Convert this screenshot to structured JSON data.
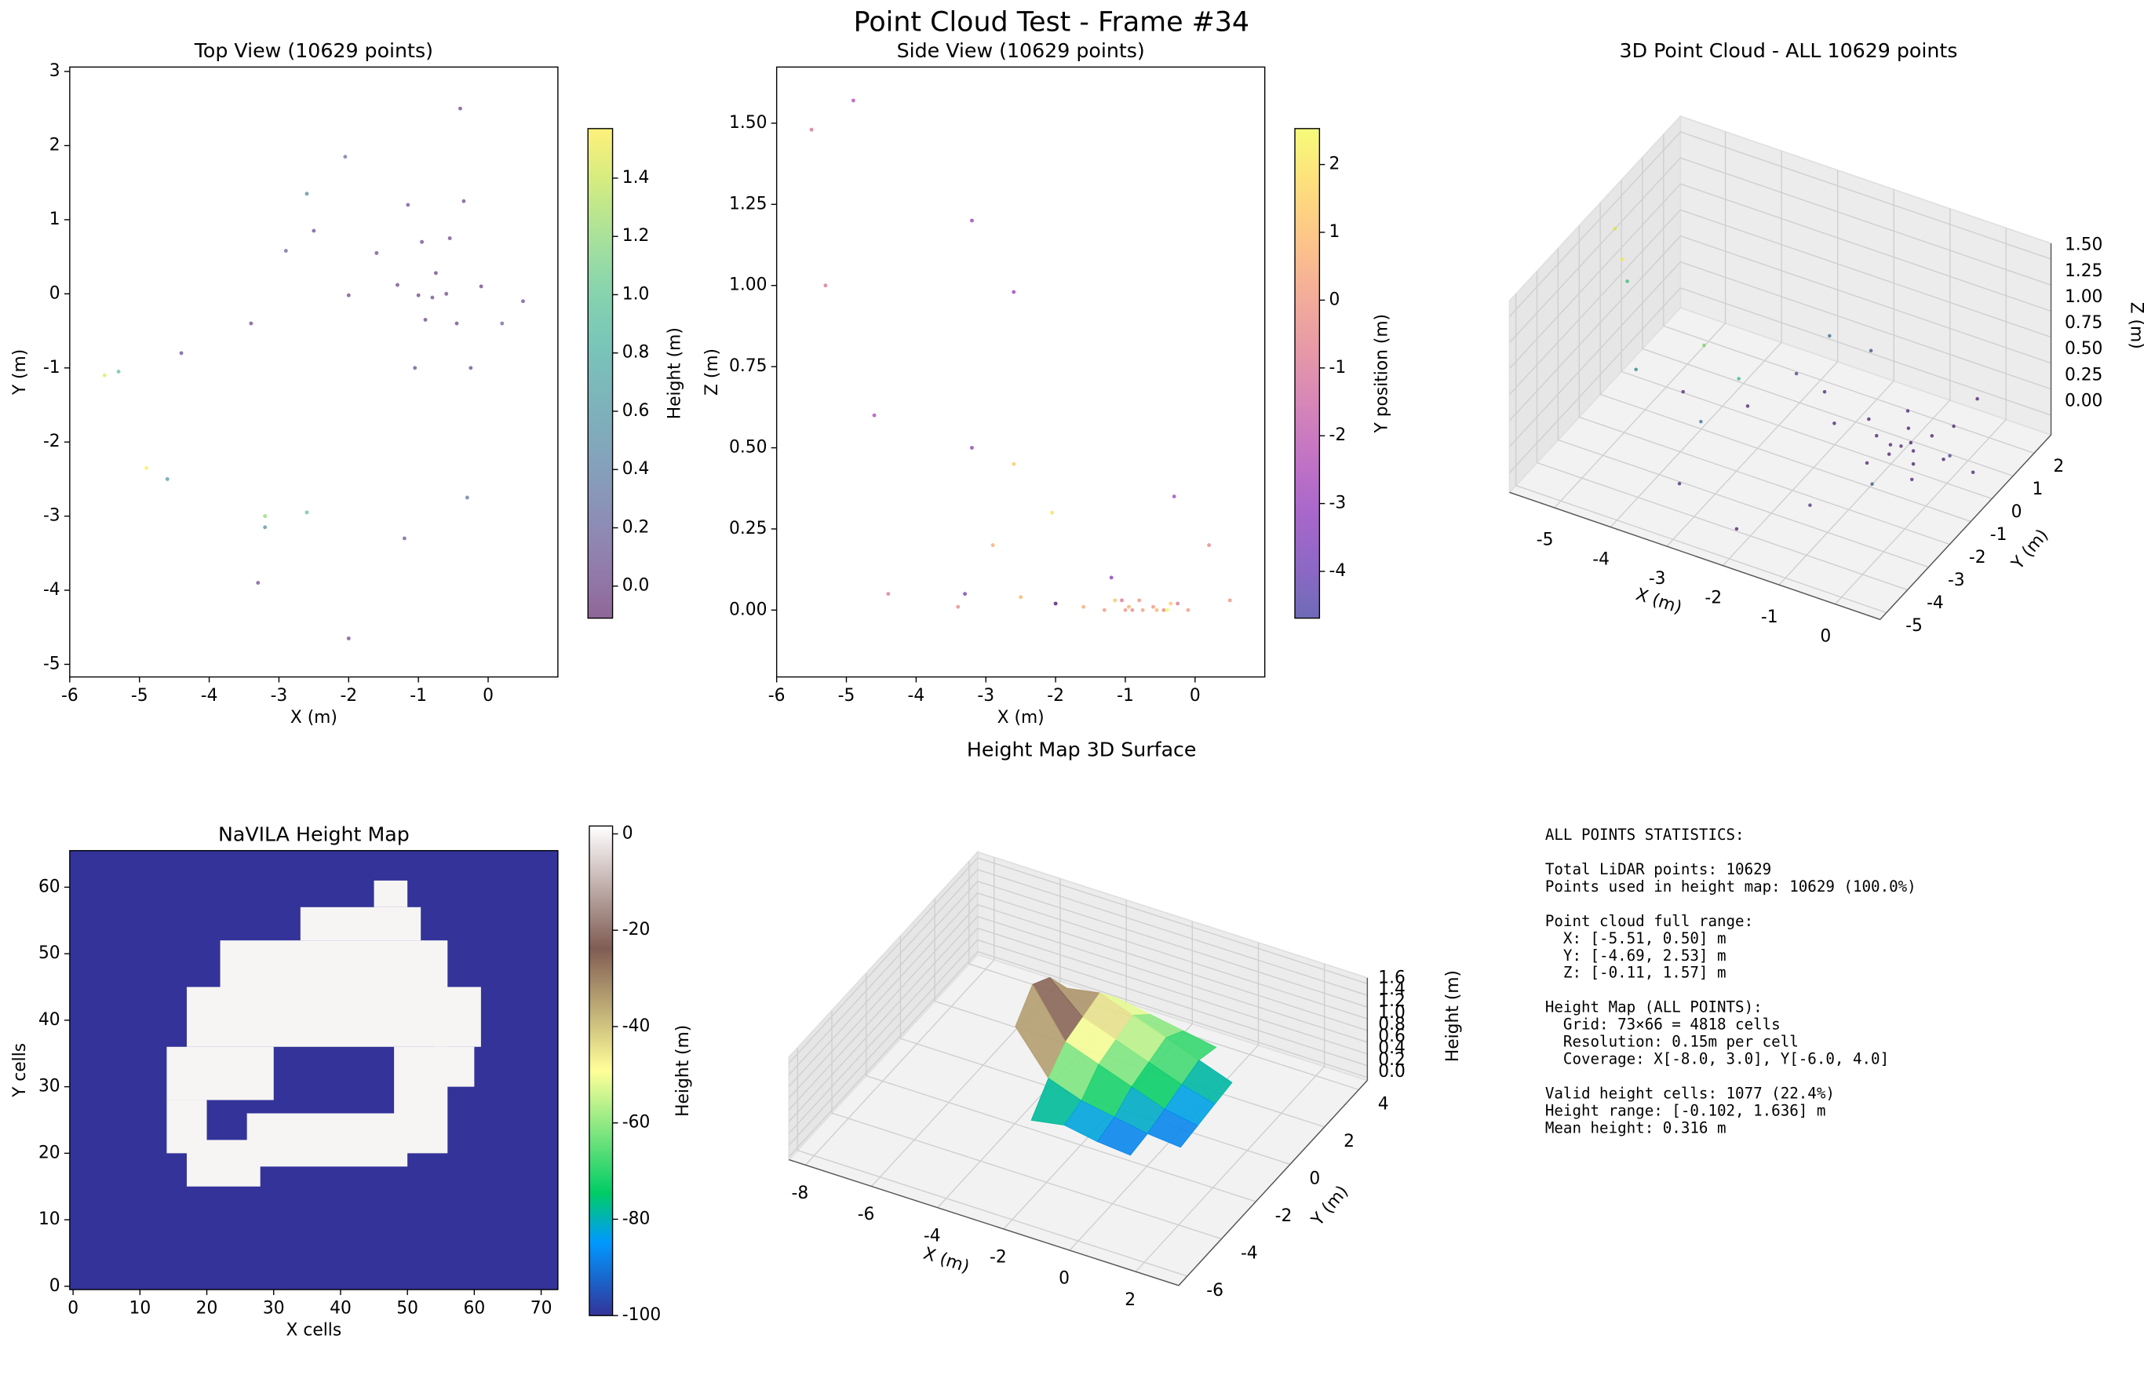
{
  "title": "Point Cloud Test - Frame #34",
  "chart_data": [
    {
      "type": "scatter",
      "title": "Top View (10629 points)",
      "xlabel": "X (m)",
      "ylabel": "Y (m)",
      "x": [
        -0.75,
        -0.95,
        -1.15,
        -0.55,
        -0.35,
        -1.3,
        -2.0,
        -0.9,
        -1.05,
        -0.45,
        -0.25,
        -0.1,
        0.5,
        -1.6,
        -2.5,
        -2.9,
        -2.05,
        -2.6,
        -5.3,
        -5.5,
        -4.6,
        -4.9,
        -3.2,
        -3.2,
        -2.6,
        -2.0,
        -3.3,
        -1.2,
        -0.3,
        -4.4,
        -3.4,
        0.2,
        -0.4,
        -1.0,
        -0.6,
        -0.8
      ],
      "y": [
        0.28,
        0.7,
        1.2,
        0.75,
        1.25,
        0.12,
        -0.02,
        -0.35,
        -1.0,
        -0.4,
        -1.0,
        0.1,
        -0.1,
        0.55,
        0.85,
        0.58,
        1.85,
        1.35,
        -1.05,
        -1.1,
        -2.5,
        -2.35,
        -3.15,
        -3.0,
        -2.95,
        -4.65,
        -3.9,
        -3.3,
        -2.75,
        -0.8,
        -0.4,
        -0.4,
        2.5,
        -0.02,
        0.0,
        -0.05
      ],
      "c": [
        0.0,
        0.01,
        0.03,
        0.0,
        0.02,
        0.0,
        0.02,
        0.0,
        0.03,
        0.0,
        0.02,
        0.0,
        0.03,
        0.01,
        0.04,
        0.2,
        0.3,
        0.45,
        1.0,
        1.48,
        0.6,
        1.57,
        0.5,
        1.2,
        0.98,
        0.02,
        0.05,
        0.1,
        0.35,
        0.05,
        0.01,
        0.2,
        0.0,
        0.0,
        0.01,
        0.03
      ],
      "cmap": "viridis",
      "alpha": 0.6,
      "clim": [
        -0.11,
        1.57
      ],
      "colorbar_label": "Height (m)",
      "colorbar_ticks": [
        {
          "value": 0,
          "label": "0.0"
        },
        0.2,
        0.4,
        0.6,
        0.8,
        {
          "value": 1,
          "label": "1.0"
        },
        1.2,
        1.4
      ],
      "xlim": [
        -6.0,
        1.0
      ],
      "xticks": [
        -6,
        -5,
        -4,
        -3,
        -2,
        -1,
        0
      ],
      "ylim": [
        -5.17,
        3.06
      ],
      "yticks": [
        -5,
        -4,
        -3,
        -2,
        -1,
        0,
        1,
        2,
        3
      ]
    },
    {
      "type": "scatter",
      "title": "Side View (10629 points)",
      "xlabel": "X (m)",
      "ylabel": "Z (m)",
      "x": [
        -0.75,
        -0.95,
        -1.15,
        -0.55,
        -0.35,
        -1.3,
        -2.0,
        -0.9,
        -1.05,
        -0.45,
        -0.25,
        -0.1,
        0.5,
        -1.6,
        -2.5,
        -2.9,
        -2.05,
        -2.6,
        -5.3,
        -5.5,
        -4.6,
        -4.9,
        -3.2,
        -3.2,
        -2.6,
        -2.0,
        -3.3,
        -1.2,
        -0.3,
        -4.4,
        -3.4,
        0.2,
        -0.4,
        -1.0,
        -0.6,
        -0.8
      ],
      "y": [
        0.0,
        0.01,
        0.03,
        0.0,
        0.02,
        0.0,
        0.02,
        0.0,
        0.03,
        0.0,
        0.02,
        0.0,
        0.03,
        0.01,
        0.04,
        0.2,
        0.3,
        0.45,
        1.0,
        1.48,
        0.6,
        1.57,
        0.5,
        1.2,
        0.98,
        0.02,
        0.05,
        0.1,
        0.35,
        0.05,
        0.01,
        0.2,
        0.0,
        0.0,
        0.01,
        0.03
      ],
      "c": [
        0.28,
        0.7,
        1.2,
        0.75,
        1.25,
        0.12,
        -0.02,
        -0.35,
        -1.0,
        -0.4,
        -1.0,
        0.1,
        -0.1,
        0.55,
        0.85,
        0.58,
        1.85,
        1.35,
        -1.05,
        -1.1,
        -2.5,
        -2.35,
        -3.15,
        -3.0,
        -2.95,
        -4.65,
        -3.9,
        -3.3,
        -2.75,
        -0.8,
        -0.4,
        -0.4,
        2.5,
        -0.02,
        0.0,
        -0.05
      ],
      "cmap": "plasma",
      "alpha": 0.6,
      "clim": [
        -4.69,
        2.53
      ],
      "colorbar_label": "Y position (m)",
      "colorbar_ticks": [
        -4,
        -3,
        -2,
        -1,
        0,
        1,
        2
      ],
      "xlim": [
        -6.0,
        1.0
      ],
      "xticks": [
        -6,
        -5,
        -4,
        -3,
        -2,
        -1,
        0
      ],
      "ylim": [
        -0.206,
        1.673
      ],
      "yticks": [
        {
          "value": 0,
          "label": "0.00"
        },
        0.25,
        {
          "value": 0.5,
          "label": "0.50"
        },
        0.75,
        {
          "value": 1,
          "label": "1.00"
        },
        1.25,
        {
          "value": 1.5,
          "label": "1.50"
        }
      ]
    },
    {
      "type": "scatter3d",
      "title": "3D Point Cloud - ALL 10629 points",
      "xlabel": "X (m)",
      "ylabel": "Y (m)",
      "zlabel": "Z (m)",
      "x": [
        -0.75,
        -0.95,
        -1.15,
        -0.55,
        -0.35,
        -1.3,
        -2.0,
        -0.9,
        -1.05,
        -0.45,
        -0.25,
        -0.1,
        0.5,
        -1.6,
        -2.5,
        -2.9,
        -2.05,
        -2.6,
        -5.3,
        -5.5,
        -4.6,
        -4.9,
        -3.2,
        -3.2,
        -2.6,
        -2.0,
        -3.3,
        -1.2,
        -0.3,
        -4.4,
        -3.4,
        0.2,
        -0.4,
        -1.0,
        -0.6,
        -0.8
      ],
      "y": [
        0.28,
        0.7,
        1.2,
        0.75,
        1.25,
        0.12,
        -0.02,
        -0.35,
        -1.0,
        -0.4,
        -1.0,
        0.1,
        -0.1,
        0.55,
        0.85,
        0.58,
        1.85,
        1.35,
        -1.05,
        -1.1,
        -2.5,
        -2.35,
        -3.15,
        -3.0,
        -2.95,
        -4.65,
        -3.9,
        -3.3,
        -2.75,
        -0.8,
        -0.4,
        -0.4,
        2.5,
        -0.02,
        0.0,
        -0.05
      ],
      "z": [
        0.0,
        0.01,
        0.03,
        0.0,
        0.02,
        0.0,
        0.02,
        0.0,
        0.03,
        0.0,
        0.02,
        0.0,
        0.03,
        0.01,
        0.04,
        0.2,
        0.3,
        0.45,
        1.0,
        1.48,
        0.6,
        1.57,
        0.5,
        1.2,
        0.98,
        0.02,
        0.05,
        0.1,
        0.35,
        0.05,
        0.01,
        0.2,
        0.0,
        0.0,
        0.01,
        0.03
      ],
      "cmap": "viridis",
      "clim": [
        -0.11,
        1.57
      ],
      "xlim": [
        -5.8,
        0.8
      ],
      "xticks": [
        -5,
        -4,
        -3,
        -2,
        -1,
        0
      ],
      "ylim": [
        -5.3,
        2.8
      ],
      "yticks": [
        -5,
        -4,
        -3,
        -2,
        -1,
        0,
        1,
        2
      ],
      "zlim": [
        -0.19,
        1.65
      ],
      "zticks": [
        {
          "value": 0,
          "label": "0.00"
        },
        0.25,
        {
          "value": 0.5,
          "label": "0.50"
        },
        0.75,
        {
          "value": 1,
          "label": "1.00"
        },
        1.25,
        {
          "value": 1.5,
          "label": "1.50"
        }
      ]
    },
    {
      "type": "heatmap",
      "title": "NaVILA Height Map",
      "xlabel": "X cells",
      "ylabel": "Y cells",
      "background_value": -100,
      "region_value": 0,
      "regions": [
        [
          45,
          50,
          57,
          61
        ],
        [
          34,
          52,
          52,
          57
        ],
        [
          22,
          56,
          45,
          52
        ],
        [
          17,
          61,
          36,
          45
        ],
        [
          14,
          30,
          28,
          36
        ],
        [
          14,
          20,
          20,
          28
        ],
        [
          17,
          28,
          15,
          22
        ],
        [
          26,
          50,
          18,
          26
        ],
        [
          48,
          56,
          20,
          36
        ],
        [
          54,
          60,
          30,
          36
        ]
      ],
      "cmap": "terrain",
      "clim": [
        -100,
        1.636
      ],
      "colorbar_label": "Height (m)",
      "colorbar_ticks": [
        -100,
        -80,
        -60,
        -40,
        -20,
        0
      ],
      "xlim": [
        -0.5,
        72.5
      ],
      "xticks": [
        0,
        10,
        20,
        30,
        40,
        50,
        60,
        70
      ],
      "ylim": [
        -0.5,
        65.5
      ],
      "yticks": [
        0,
        10,
        20,
        30,
        40,
        50,
        60
      ]
    },
    {
      "type": "surface3d",
      "title": "Height Map 3D Surface",
      "xlabel": "X (m)",
      "ylabel": "Y (m)",
      "zlabel": "Height (m)",
      "gx": [
        -4.5,
        -3.5,
        -2.5,
        -1.5,
        -0.5,
        0.5
      ],
      "gy": [
        -2,
        -1,
        0,
        1,
        2,
        3
      ],
      "z": [
        [
          null,
          0.1,
          0.2,
          0.1,
          0.05,
          null
        ],
        [
          1.2,
          0.5,
          0.3,
          0.2,
          0.1,
          0.05
        ],
        [
          1.6,
          0.8,
          0.6,
          0.4,
          0.2,
          0.1
        ],
        [
          1.4,
          0.9,
          0.7,
          0.5,
          0.3,
          0.15
        ],
        [
          0.9,
          1.0,
          0.8,
          0.6,
          0.4,
          0.2
        ],
        [
          null,
          0.6,
          0.5,
          0.4,
          0.3,
          null
        ]
      ],
      "cmap": "terrain",
      "clim": [
        -0.102,
        1.636
      ],
      "xlim": [
        -8.5,
        3.3
      ],
      "xticks": [
        -8,
        -6,
        -4,
        -2,
        0,
        2
      ],
      "ylim": [
        -6.5,
        4.5
      ],
      "yticks": [
        -6,
        -4,
        -2,
        0,
        2,
        4
      ],
      "zlim": [
        -0.05,
        1.7
      ],
      "zticks": [
        {
          "value": 0,
          "label": "0.0"
        },
        0.2,
        0.4,
        0.6,
        0.8,
        {
          "value": 1,
          "label": "1.0"
        },
        1.2,
        1.4,
        1.6
      ]
    }
  ],
  "stats": {
    "blocks": [
      [
        "ALL POINTS STATISTICS:"
      ],
      [
        "Total LiDAR points: 10629",
        "Points used in height map: 10629 (100.0%)"
      ],
      [
        "Point cloud full range:",
        "  X: [-5.51, 0.50] m",
        "  Y: [-4.69, 2.53] m",
        "  Z: [-0.11, 1.57] m"
      ],
      [
        "Height Map (ALL POINTS):",
        "  Grid: 73×66 = 4818 cells",
        "  Resolution: 0.15m per cell",
        "  Coverage: X[-8.0, 3.0], Y[-6.0, 4.0]"
      ],
      [
        "Valid height cells: 1077 (22.4%)",
        "Height range: [-0.102, 1.636] m",
        "Mean height: 0.316 m"
      ]
    ]
  }
}
